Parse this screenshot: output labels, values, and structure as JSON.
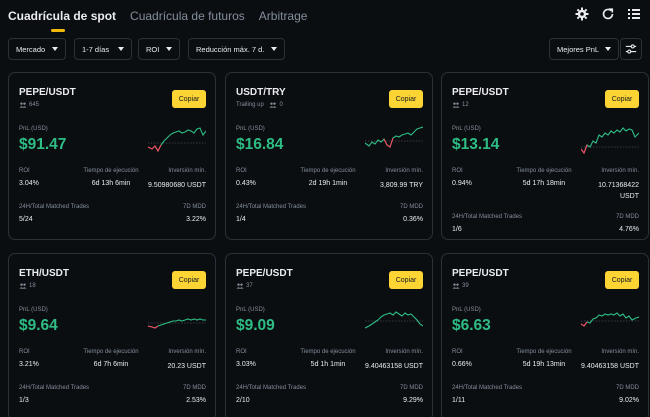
{
  "tabs": [
    "Cuadrícula de spot",
    "Cuadrícula de futuros",
    "Arbitrage"
  ],
  "filters": {
    "market": "Mercado",
    "period": "1-7 días",
    "roi": "ROI",
    "mdd": "Reducción máx. 7 d.",
    "sort": "Mejores PnL"
  },
  "labels": {
    "copy": "Copiar",
    "pnl": "PnL (USD)",
    "roi": "ROI",
    "runtime": "Tiempo de ejecución",
    "min_invest": "Inversión mín.",
    "matched": "24H/Total Matched Trades",
    "mdd": "7D MDD"
  },
  "cards": [
    {
      "pair": "PEPE/USDT",
      "sub": "645",
      "pnl": "$91.47",
      "roi": "3.04%",
      "runtime": "6d 13h 6min",
      "min_invest": "9.50980680 USDT",
      "trades": "5/24",
      "mdd": "3.22%"
    },
    {
      "pair": "USDT/TRY",
      "sub": "Trailing up",
      "sub2": "0",
      "pnl": "$16.84",
      "roi": "0.43%",
      "runtime": "2d 19h 1min",
      "min_invest": "3,809.99 TRY",
      "trades": "1/4",
      "mdd": "0.36%"
    },
    {
      "pair": "PEPE/USDT",
      "sub": "12",
      "pnl": "$13.14",
      "roi": "0.94%",
      "runtime": "5d 17h 18min",
      "min_invest": "10.71368422 USDT",
      "trades": "1/6",
      "mdd": "4.76%"
    },
    {
      "pair": "ETH/USDT",
      "sub": "18",
      "pnl": "$9.64",
      "roi": "3.21%",
      "runtime": "6d 7h 6min",
      "min_invest": "20.23 USDT",
      "trades": "1/3",
      "mdd": "2.53%"
    },
    {
      "pair": "PEPE/USDT",
      "sub": "37",
      "pnl": "$9.09",
      "roi": "3.03%",
      "runtime": "5d 1h 1min",
      "min_invest": "9.40463158 USDT",
      "trades": "2/10",
      "mdd": "9.29%"
    },
    {
      "pair": "PEPE/USDT",
      "sub": "39",
      "pnl": "$6.63",
      "roi": "0.66%",
      "runtime": "5d 19h 13min",
      "min_invest": "9.40463158 USDT",
      "trades": "1/11",
      "mdd": "9.02%"
    }
  ],
  "colors": {
    "accent": "#fcd535",
    "positive": "#2ebd85",
    "negative": "#f6465d"
  }
}
